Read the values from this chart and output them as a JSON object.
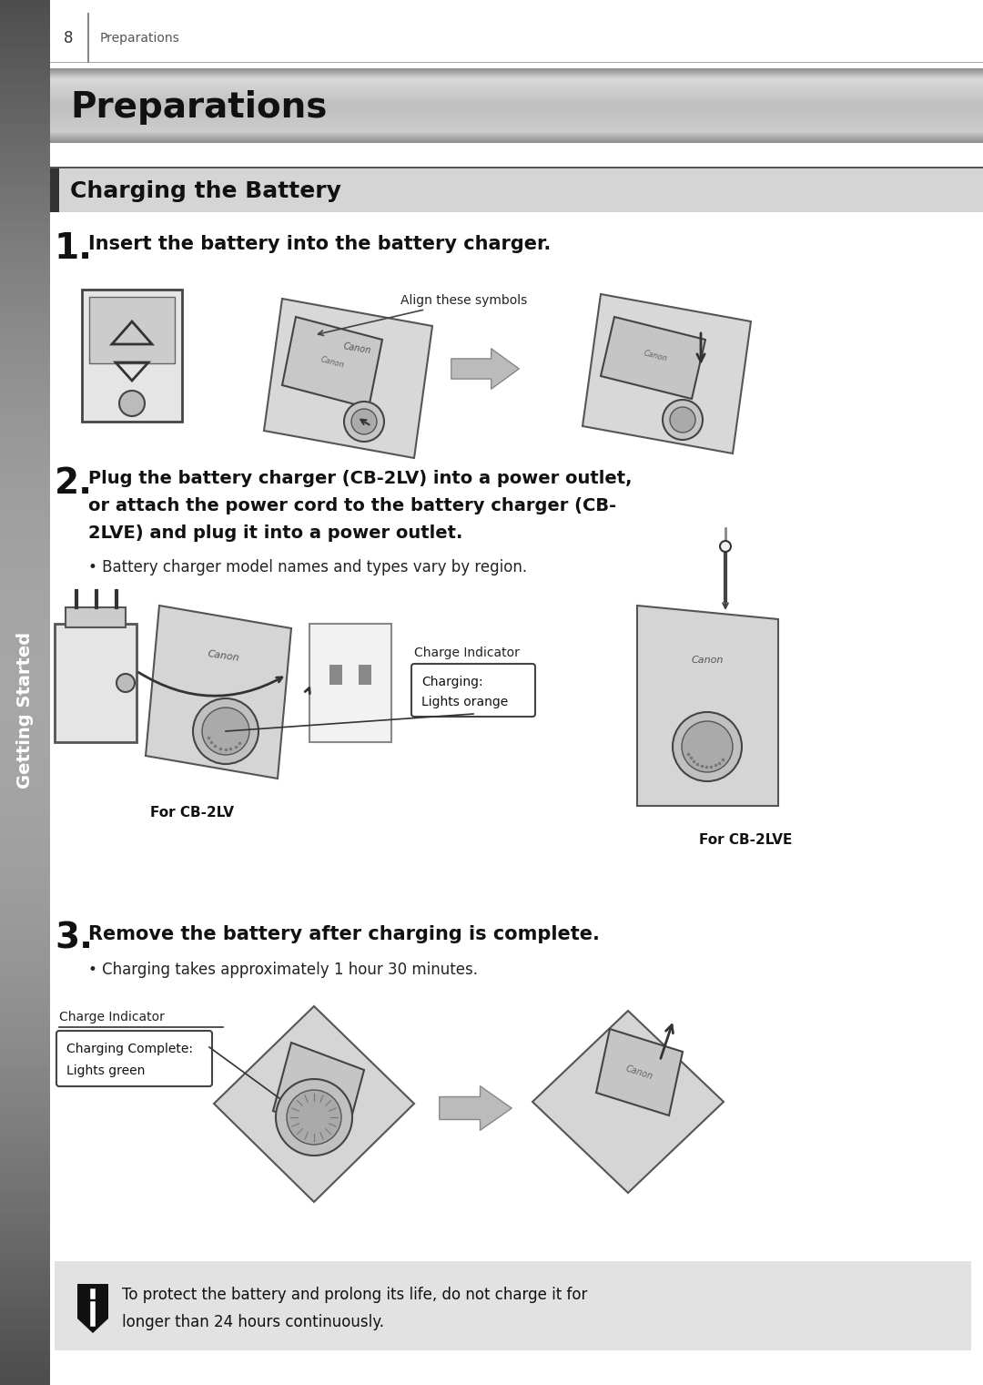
{
  "page_number": "8",
  "header_text": "Preparations",
  "title": "Preparations",
  "section1": "Charging the Battery",
  "step1_num": "1.",
  "step1_bold": "Insert the battery into the battery charger.",
  "step1_label": "Align these symbols",
  "step2_num": "2.",
  "step2_line1": "Plug the battery charger (CB-2LV) into a power outlet,",
  "step2_line2": "or attach the power cord to the battery charger (CB-",
  "step2_line3": "2LVE) and plug it into a power outlet.",
  "step2_bullet": "• Battery charger model names and types vary by region.",
  "step2_label1": "Charge Indicator",
  "step2_label2": "Charging:\nLights orange",
  "step2_cb2lv": "For CB-2LV",
  "step2_cb2lve": "For CB-2LVE",
  "step3_num": "3.",
  "step3_bold": "Remove the battery after charging is complete.",
  "step3_bullet": "• Charging takes approximately 1 hour 30 minutes.",
  "step3_label1": "Charge Indicator",
  "step3_label2": "Charging Complete:\nLights green",
  "note_text1": "To protect the battery and prolong its life, do not charge it for",
  "note_text2": "longer than 24 hours continuously.",
  "sidebar_text": "Getting Started",
  "bg_color": "#ffffff",
  "sidebar_dark": "#555555",
  "sidebar_light": "#999999",
  "title_grad_mid": "#c8c8c8",
  "title_grad_edge": "#888888",
  "section_bg": "#d0d0d0",
  "section_accent": "#333333",
  "note_bg": "#e0e0e0",
  "diagram_fill": "#d8d8d8",
  "diagram_edge": "#555555",
  "arrow_fill": "#aaaaaa"
}
